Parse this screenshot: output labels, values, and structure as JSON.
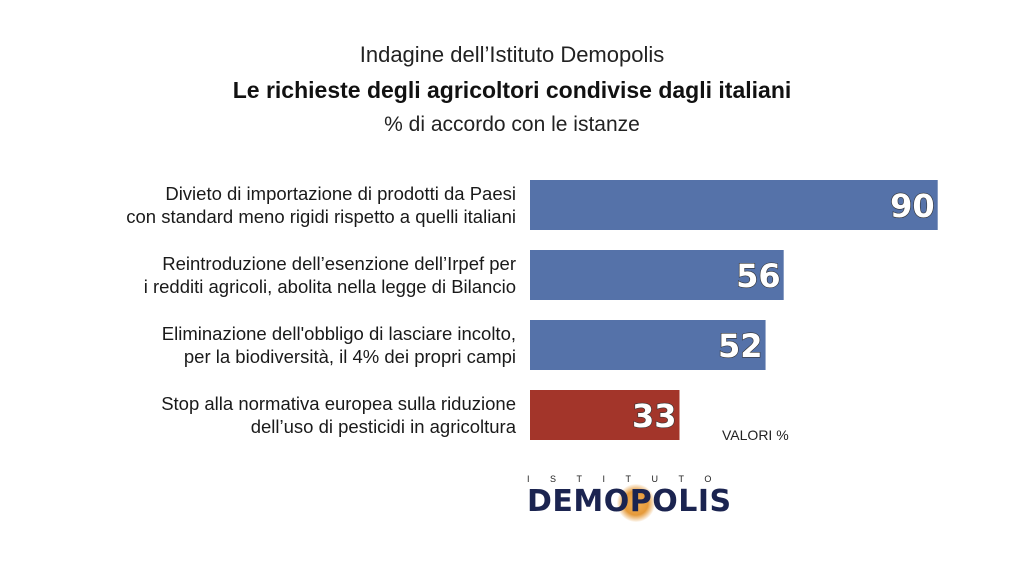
{
  "header": {
    "kicker": "Indagine dell’Istituto Demopolis",
    "title": "Le richieste degli agricoltori condivise dagli italiani",
    "subtitle": "% di accordo con le istanze"
  },
  "chart_data": {
    "type": "bar",
    "orientation": "horizontal",
    "categories": [
      [
        "Divieto di importazione di prodotti da Paesi",
        "con standard meno rigidi rispetto a quelli italiani"
      ],
      [
        "Reintroduzione dell’esenzione dell’Irpef per",
        "i redditi agricoli, abolita nella legge di Bilancio"
      ],
      [
        "Eliminazione dell'obbligo di lasciare incolto,",
        "per la biodiversità, il 4% dei propri campi"
      ],
      [
        "Stop alla normativa europea sulla riduzione",
        "dell’uso di pesticidi in agricoltura"
      ]
    ],
    "values": [
      90,
      56,
      52,
      33
    ],
    "bar_colors": [
      "#5572a9",
      "#5572a9",
      "#5572a9",
      "#a3352a"
    ],
    "xlim": [
      0,
      100
    ],
    "grid": false,
    "unit_note": "VALORI %"
  },
  "logo": {
    "top": "ISTITUTO",
    "word": "DEMOPOLIS"
  }
}
